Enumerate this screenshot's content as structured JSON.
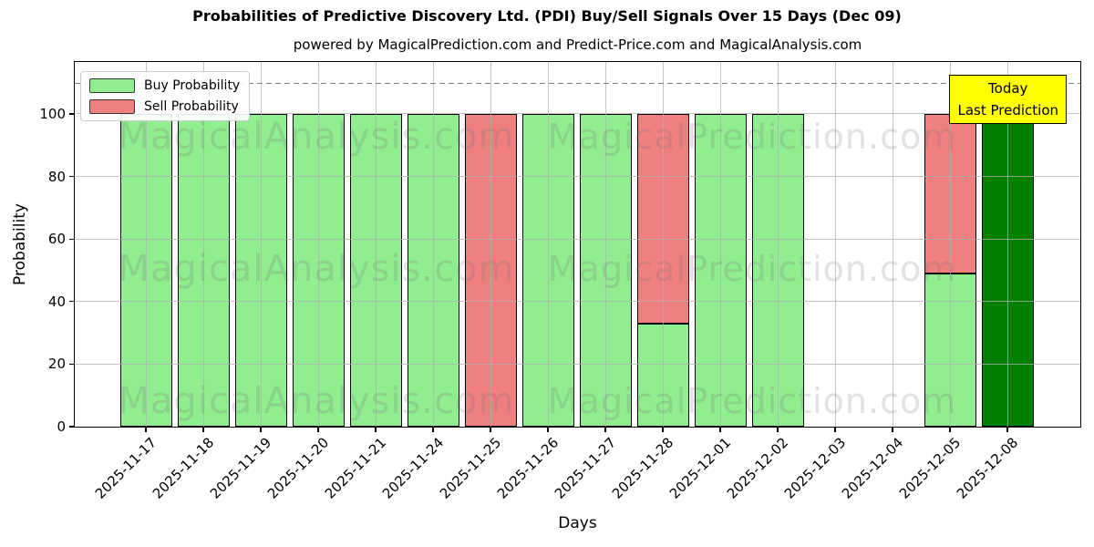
{
  "figure": {
    "title": "Probabilities of Predictive Discovery Ltd. (PDI) Buy/Sell Signals Over 15 Days (Dec 09)",
    "subtitle": "powered by MagicalPrediction.com and Predict-Price.com and MagicalAnalysis.com",
    "xlabel": "Days",
    "ylabel": "Probability"
  },
  "legend": {
    "items": [
      {
        "label": "Buy Probability",
        "color": "#90EE90"
      },
      {
        "label": "Sell Probability",
        "color": "#F08080"
      }
    ]
  },
  "annotation_box": {
    "line1": "Today",
    "line2": "Last Prediction",
    "bg_color": "#FFFF00",
    "border_color": "#000000"
  },
  "watermarks": {
    "left_text": "MagicalAnalysis.com",
    "right_text": "MagicalPrediction.com"
  },
  "chart_data": {
    "type": "bar",
    "stacked": true,
    "title": "Probabilities of Predictive Discovery Ltd. (PDI) Buy/Sell Signals Over 15 Days (Dec 09)",
    "xlabel": "Days",
    "ylabel": "Probability",
    "categories": [
      "2025-11-17",
      "2025-11-18",
      "2025-11-19",
      "2025-11-20",
      "2025-11-21",
      "2025-11-24",
      "2025-11-25",
      "2025-11-26",
      "2025-11-27",
      "2025-11-28",
      "2025-12-01",
      "2025-12-02",
      "2025-12-03",
      "2025-12-04",
      "2025-12-05",
      "2025-12-08"
    ],
    "series": [
      {
        "name": "Buy Probability",
        "color": "#90EE90",
        "values": [
          100,
          100,
          100,
          100,
          100,
          100,
          0,
          100,
          100,
          33,
          100,
          100,
          0,
          0,
          49,
          100
        ]
      },
      {
        "name": "Sell Probability",
        "color": "#F08080",
        "values": [
          0,
          0,
          0,
          0,
          0,
          0,
          100,
          0,
          0,
          67,
          0,
          0,
          0,
          0,
          51,
          0
        ]
      }
    ],
    "highlight": {
      "index": 15,
      "series": "Buy Probability",
      "color": "#008000",
      "label": "Last Prediction"
    },
    "yticks": [
      0,
      20,
      40,
      60,
      80,
      100
    ],
    "ylim": [
      0,
      116.6
    ],
    "dashed_line_y": 110,
    "dashed_line_color": "#7f7f7f",
    "grid": true,
    "grid_color": "#b0b0b0",
    "bar_edge_color": "#000000",
    "legend_position": "upper left"
  }
}
